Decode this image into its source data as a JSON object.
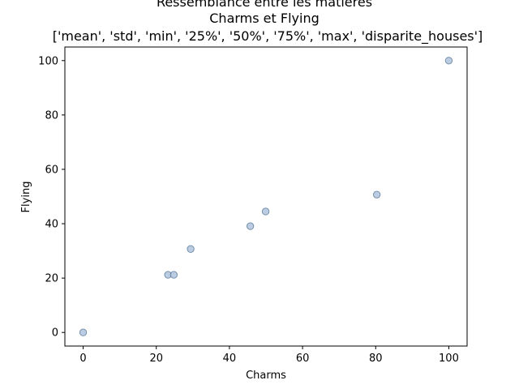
{
  "chart_data": {
    "type": "scatter",
    "title_lines": [
      "Ressemblance entre les matières",
      "Charms et Flying",
      "['mean', 'std', 'min', '25%', '50%', '75%', 'max', 'disparite_houses']"
    ],
    "xlabel": "Charms",
    "ylabel": "Flying",
    "xlim": [
      -5,
      105
    ],
    "ylim": [
      -5,
      105
    ],
    "x_ticks": [
      0,
      20,
      40,
      60,
      80,
      100
    ],
    "y_ticks": [
      0,
      20,
      40,
      60,
      80,
      100
    ],
    "grid": false,
    "marker_color": "#b0c4de",
    "marker_edge_color": "#4a6d8c",
    "points": [
      {
        "x": 0,
        "y": 0
      },
      {
        "x": 23.2,
        "y": 21.2
      },
      {
        "x": 24.8,
        "y": 21.2
      },
      {
        "x": 29.4,
        "y": 30.7
      },
      {
        "x": 45.7,
        "y": 39.1
      },
      {
        "x": 49.9,
        "y": 44.5
      },
      {
        "x": 80.3,
        "y": 50.7
      },
      {
        "x": 100,
        "y": 100
      }
    ]
  }
}
